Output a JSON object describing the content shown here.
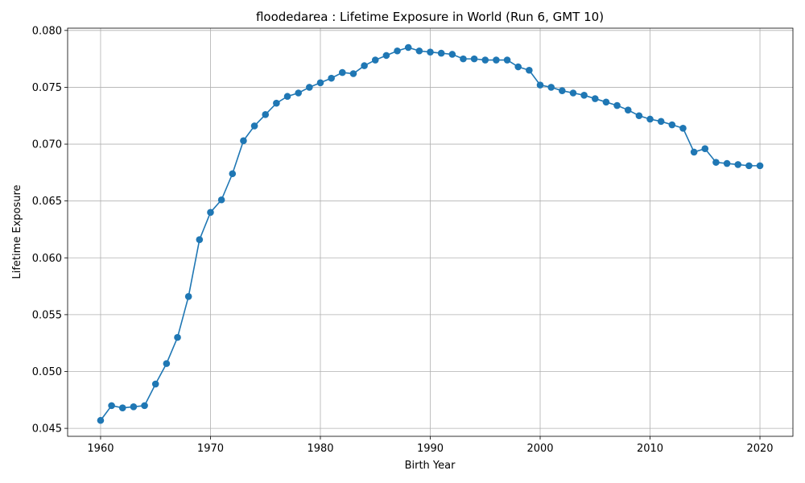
{
  "chart_data": {
    "type": "line",
    "title": "floodedarea : Lifetime Exposure in World (Run 6, GMT 10)",
    "xlabel": "Birth Year",
    "ylabel": "Lifetime Exposure",
    "xlim": [
      1957,
      2023
    ],
    "ylim": [
      0.0443,
      0.0802
    ],
    "xticks": [
      1960,
      1970,
      1980,
      1990,
      2000,
      2010,
      2020
    ],
    "yticks": [
      0.045,
      0.05,
      0.055,
      0.06,
      0.065,
      0.07,
      0.075,
      0.08
    ],
    "ytick_labels": [
      "0.045",
      "0.050",
      "0.055",
      "0.060",
      "0.065",
      "0.070",
      "0.075",
      "0.080"
    ],
    "grid": true,
    "color": "#1f77b4",
    "marker": "circle",
    "x": [
      1960,
      1961,
      1962,
      1963,
      1964,
      1965,
      1966,
      1967,
      1968,
      1969,
      1970,
      1971,
      1972,
      1973,
      1974,
      1975,
      1976,
      1977,
      1978,
      1979,
      1980,
      1981,
      1982,
      1983,
      1984,
      1985,
      1986,
      1987,
      1988,
      1989,
      1990,
      1991,
      1992,
      1993,
      1994,
      1995,
      1996,
      1997,
      1998,
      1999,
      2000,
      2001,
      2002,
      2003,
      2004,
      2005,
      2006,
      2007,
      2008,
      2009,
      2010,
      2011,
      2012,
      2013,
      2014,
      2015,
      2016,
      2017,
      2018,
      2019,
      2020
    ],
    "y": [
      0.0457,
      0.047,
      0.0468,
      0.0469,
      0.047,
      0.0489,
      0.0507,
      0.053,
      0.0566,
      0.0616,
      0.064,
      0.0651,
      0.0674,
      0.0703,
      0.0716,
      0.0726,
      0.0736,
      0.0742,
      0.0745,
      0.075,
      0.0754,
      0.0758,
      0.0763,
      0.0762,
      0.0769,
      0.0774,
      0.0778,
      0.0782,
      0.0785,
      0.0782,
      0.0781,
      0.078,
      0.0779,
      0.0775,
      0.0775,
      0.0774,
      0.0774,
      0.0774,
      0.0768,
      0.0765,
      0.0752,
      0.075,
      0.0747,
      0.0745,
      0.0743,
      0.074,
      0.0737,
      0.0734,
      0.073,
      0.0725,
      0.0722,
      0.072,
      0.0717,
      0.0714,
      0.0693,
      0.0696,
      0.0684,
      0.0683,
      0.0682,
      0.0681,
      0.0681
    ]
  }
}
